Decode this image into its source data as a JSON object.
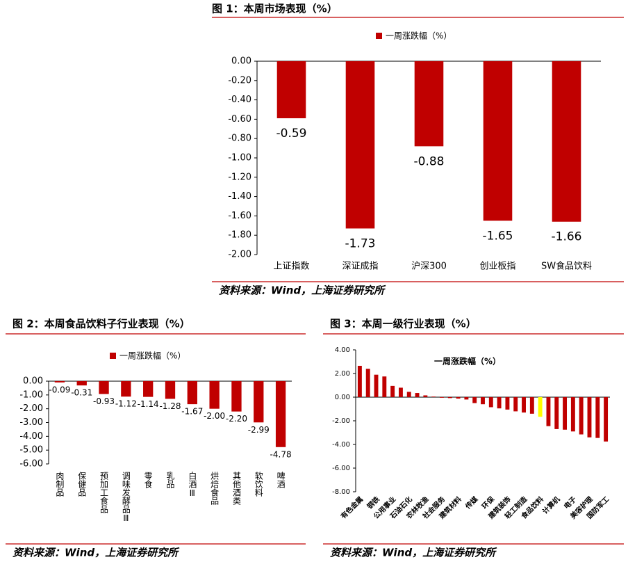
{
  "chart_data": [
    {
      "type": "bar",
      "title": "图 1：本周市场表现（%）",
      "source": "资料来源：Wind，上海证券研究所",
      "categories": [
        "上证指数",
        "深证成指",
        "沪深300",
        "创业板指",
        "SW食品饮料"
      ],
      "series": [
        {
          "name": "一周涨跌幅（%）",
          "color": "#c00000",
          "values": [
            -0.59,
            -1.73,
            -0.88,
            -1.65,
            -1.66
          ]
        }
      ],
      "ylim": [
        -2,
        0
      ],
      "yticks": [
        {
          "value": 0,
          "label": "0.00"
        },
        {
          "value": -0.2,
          "label": "-0.20"
        },
        {
          "value": -0.4,
          "label": "-0.40"
        },
        {
          "value": -0.6,
          "label": "-0.60"
        },
        {
          "value": -0.8,
          "label": "-0.80"
        },
        {
          "value": -1,
          "label": "-1.00"
        },
        {
          "value": -1.2,
          "label": "-1.20"
        },
        {
          "value": -1.4,
          "label": "-1.40"
        },
        {
          "value": -1.6,
          "label": "-1.60"
        },
        {
          "value": -1.8,
          "label": "-1.80"
        },
        {
          "value": -2,
          "label": "-2.00"
        }
      ]
    },
    {
      "type": "bar",
      "title": "图 2：本周食品饮料子行业表现（%）",
      "source": "资料来源：Wind，上海证券研究所",
      "categories": [
        "肉制品",
        "保健品",
        "预加工食品",
        "调味发酵品Ⅲ",
        "零食",
        "乳品",
        "白酒Ⅲ",
        "烘焙食品",
        "其他酒类",
        "软饮料",
        "啤酒"
      ],
      "series": [
        {
          "name": "一周涨跌幅（%）",
          "color": "#c00000",
          "values": [
            -0.09,
            -0.31,
            -0.93,
            -1.12,
            -1.14,
            -1.28,
            -1.67,
            -2.0,
            -2.2,
            -2.99,
            -4.78
          ],
          "value_labels": [
            "-0.09",
            "-0.31",
            "-0.93",
            "-1.12",
            "-1.14",
            "-1.28",
            "-1.67",
            "-2.00",
            "-2.20",
            "-2.99",
            "-4.78"
          ]
        }
      ],
      "ylim": [
        -6,
        0
      ],
      "yticks": [
        {
          "value": 0,
          "label": "0.00"
        },
        {
          "value": -1,
          "label": "-1.00"
        },
        {
          "value": -2,
          "label": "-2.00"
        },
        {
          "value": -3,
          "label": "-3.00"
        },
        {
          "value": -4,
          "label": "-4.00"
        },
        {
          "value": -5,
          "label": "-5.00"
        },
        {
          "value": -6,
          "label": "-6.00"
        }
      ]
    },
    {
      "type": "bar",
      "title": "图 3：本周一级行业表现（%）",
      "source": "资料来源：Wind，上海证券研究所",
      "categories": [
        "有色金属",
        null,
        "钢铁",
        null,
        "公用事业",
        null,
        "石油石化",
        null,
        "农林牧渔",
        null,
        "社会服务",
        null,
        "建筑材料",
        null,
        "传媒",
        null,
        "环保",
        null,
        "建筑装饰",
        null,
        "轻工制造",
        null,
        "食品饮料",
        null,
        "计算机",
        null,
        "电子",
        null,
        "美容护理",
        null,
        "国防军工"
      ],
      "series": [
        {
          "name": "一周涨跌幅（%）",
          "color": "#c00000",
          "values": [
            2.65,
            2.4,
            1.9,
            1.75,
            0.95,
            0.8,
            0.45,
            0.35,
            0.15,
            0.05,
            -0.05,
            -0.08,
            -0.12,
            -0.2,
            -0.5,
            -0.6,
            -0.85,
            -0.95,
            -1.05,
            -1.2,
            -1.3,
            -1.4,
            -1.66,
            -2.45,
            -2.7,
            -2.75,
            -2.9,
            -3.15,
            -3.4,
            -3.45,
            -3.75
          ],
          "colors": [
            "#c00000",
            "#c00000",
            "#c00000",
            "#c00000",
            "#c00000",
            "#c00000",
            "#c00000",
            "#c00000",
            "#c00000",
            "#c00000",
            "#c00000",
            "#c00000",
            "#c00000",
            "#c00000",
            "#c00000",
            "#c00000",
            "#c00000",
            "#c00000",
            "#c00000",
            "#c00000",
            "#c00000",
            "#c00000",
            "#ffff00",
            "#c00000",
            "#c00000",
            "#c00000",
            "#c00000",
            "#c00000",
            "#c00000",
            "#c00000",
            "#c00000"
          ]
        }
      ],
      "ylim": [
        -8,
        4
      ],
      "yticks": [
        {
          "value": 4,
          "label": "4.00"
        },
        {
          "value": 2,
          "label": "2.00"
        },
        {
          "value": 0,
          "label": "0.00"
        },
        {
          "value": -2,
          "label": "-2.00"
        },
        {
          "value": -4,
          "label": "-4.00"
        },
        {
          "value": -6,
          "label": "-6.00"
        },
        {
          "value": -8,
          "label": "-8.00"
        }
      ]
    }
  ]
}
